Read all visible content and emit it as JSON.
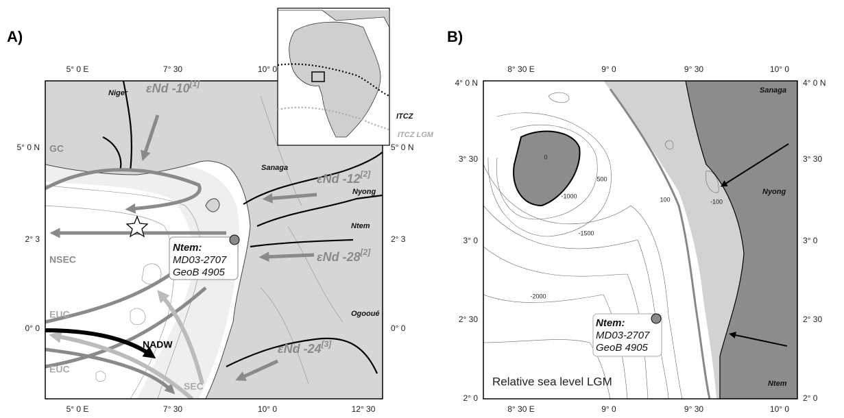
{
  "panel_a": {
    "label": "A)",
    "top_ticks": [
      "5° 0 E",
      "7° 30",
      "10° 0"
    ],
    "bottom_ticks": [
      "5° 0 E",
      "7° 30",
      "10° 0",
      "12° 30"
    ],
    "left_ticks": [
      "5° 0 N",
      "2° 3",
      "0° 0"
    ],
    "right_ticks": [
      "5° 0 N",
      "2° 3",
      "0° 0"
    ],
    "rivers": [
      "Niger",
      "Sanaga",
      "Nyong",
      "Ntem",
      "Ogooué"
    ],
    "end_members": [
      {
        "text": "εNd -10",
        "ref": "[1]"
      },
      {
        "text": "εNd -12",
        "ref": "[2]"
      },
      {
        "text": "εNd -28",
        "ref": "[2]"
      },
      {
        "text": "εNd -24",
        "ref": "[3]"
      }
    ],
    "currents": [
      "GC",
      "NSEC",
      "EUC",
      "NADW",
      "EUC",
      "SEC"
    ],
    "sample": {
      "title": "Ntem:",
      "lines": [
        "MD03-2707",
        "GeoB 4905"
      ]
    },
    "inset_labels": [
      "ITCZ",
      "ITCZ LGM"
    ]
  },
  "panel_b": {
    "label": "B)",
    "top_ticks": [
      "8° 30 E",
      "9° 0",
      "9° 30",
      "10° 0"
    ],
    "bottom_ticks": [
      "8° 30 E",
      "9° 0",
      "9° 30",
      "10° 0"
    ],
    "left_ticks": [
      "4° 0 N",
      "3° 30",
      "3° 0",
      "2° 30",
      "2° 0"
    ],
    "right_ticks": [
      "4° 0 N",
      "3° 30",
      "3° 0",
      "2° 30",
      "2° 0"
    ],
    "rivers": [
      "Sanaga",
      "Nyong",
      "Ntem"
    ],
    "contour_labels": [
      "0",
      "500",
      "-1000",
      "-1500",
      "-2000",
      "100",
      "-100"
    ],
    "sample": {
      "title": "Ntem:",
      "lines": [
        "MD03-2707",
        "GeoB 4905"
      ]
    },
    "caption": "Relative sea level LGM"
  }
}
